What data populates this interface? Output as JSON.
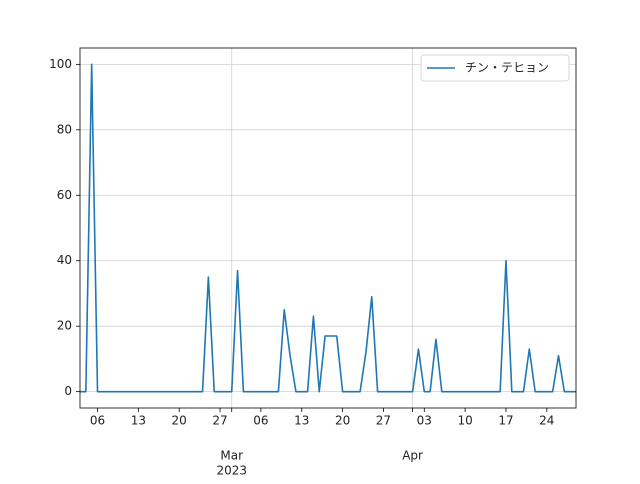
{
  "chart_data": {
    "type": "line",
    "x": [
      "2023-02-03",
      "2023-02-04",
      "2023-02-05",
      "2023-02-06",
      "2023-02-07",
      "2023-02-08",
      "2023-02-09",
      "2023-02-10",
      "2023-02-11",
      "2023-02-12",
      "2023-02-13",
      "2023-02-14",
      "2023-02-15",
      "2023-02-16",
      "2023-02-17",
      "2023-02-18",
      "2023-02-19",
      "2023-02-20",
      "2023-02-21",
      "2023-02-22",
      "2023-02-23",
      "2023-02-24",
      "2023-02-25",
      "2023-02-26",
      "2023-02-27",
      "2023-02-28",
      "2023-03-01",
      "2023-03-02",
      "2023-03-03",
      "2023-03-04",
      "2023-03-05",
      "2023-03-06",
      "2023-03-07",
      "2023-03-08",
      "2023-03-09",
      "2023-03-10",
      "2023-03-11",
      "2023-03-12",
      "2023-03-13",
      "2023-03-14",
      "2023-03-15",
      "2023-03-16",
      "2023-03-17",
      "2023-03-18",
      "2023-03-19",
      "2023-03-20",
      "2023-03-21",
      "2023-03-22",
      "2023-03-23",
      "2023-03-24",
      "2023-03-25",
      "2023-03-26",
      "2023-03-27",
      "2023-03-28",
      "2023-03-29",
      "2023-03-30",
      "2023-03-31",
      "2023-04-01",
      "2023-04-02",
      "2023-04-03",
      "2023-04-04",
      "2023-04-05",
      "2023-04-06",
      "2023-04-07",
      "2023-04-08",
      "2023-04-09",
      "2023-04-10",
      "2023-04-11",
      "2023-04-12",
      "2023-04-13",
      "2023-04-14",
      "2023-04-15",
      "2023-04-16",
      "2023-04-17",
      "2023-04-18",
      "2023-04-19",
      "2023-04-20",
      "2023-04-21",
      "2023-04-22",
      "2023-04-23",
      "2023-04-24",
      "2023-04-25",
      "2023-04-26",
      "2023-04-27",
      "2023-04-28",
      "2023-04-29"
    ],
    "series": [
      {
        "name": "チン・テヒョン",
        "color": "#1f77b4",
        "values": [
          0,
          0,
          100,
          0,
          0,
          0,
          0,
          0,
          0,
          0,
          0,
          0,
          0,
          0,
          0,
          0,
          0,
          0,
          0,
          0,
          0,
          0,
          35,
          0,
          0,
          0,
          0,
          37,
          0,
          0,
          0,
          0,
          0,
          0,
          0,
          25,
          11,
          0,
          0,
          0,
          23,
          0,
          17,
          17,
          17,
          0,
          0,
          0,
          0,
          12,
          29,
          0,
          0,
          0,
          0,
          0,
          0,
          0,
          13,
          0,
          0,
          16,
          0,
          0,
          0,
          0,
          0,
          0,
          0,
          0,
          0,
          0,
          0,
          40,
          0,
          0,
          0,
          13,
          0,
          0,
          0,
          0,
          11,
          0,
          0,
          0
        ]
      }
    ],
    "xlim": [
      "2023-02-03",
      "2023-04-29"
    ],
    "xticks": [
      {
        "value": "2023-02-06",
        "label": "06"
      },
      {
        "value": "2023-02-13",
        "label": "13"
      },
      {
        "value": "2023-02-20",
        "label": "20"
      },
      {
        "value": "2023-02-27",
        "label": "27"
      },
      {
        "value": "2023-03-06",
        "label": "06"
      },
      {
        "value": "2023-03-13",
        "label": "13"
      },
      {
        "value": "2023-03-20",
        "label": "20"
      },
      {
        "value": "2023-03-27",
        "label": "27"
      },
      {
        "value": "2023-04-03",
        "label": "03"
      },
      {
        "value": "2023-04-10",
        "label": "10"
      },
      {
        "value": "2023-04-17",
        "label": "17"
      },
      {
        "value": "2023-04-24",
        "label": "24"
      }
    ],
    "xticks_major": [
      {
        "value": "2023-03-01",
        "label": "Mar"
      },
      {
        "value": "2023-04-01",
        "label": "Apr"
      }
    ],
    "x_year_label": "2023",
    "ylim": [
      -5,
      105
    ],
    "yticks": [
      0,
      20,
      40,
      60,
      80,
      100
    ],
    "grid": true,
    "legend": "upper right"
  }
}
